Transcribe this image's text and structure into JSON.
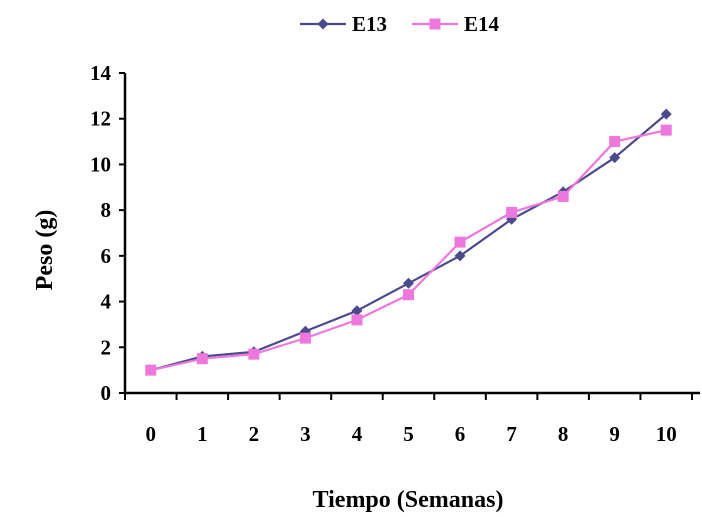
{
  "chart_data": {
    "type": "line",
    "title": "",
    "xlabel": "Tiempo (Semanas)",
    "ylabel": "Peso (g)",
    "x": [
      0,
      1,
      2,
      3,
      4,
      5,
      6,
      7,
      8,
      9,
      10
    ],
    "x_tick_labels": [
      "0",
      "1",
      "2",
      "3",
      "4",
      "5",
      "6",
      "7",
      "8",
      "9",
      "10"
    ],
    "y_tick_labels": [
      "0",
      "2",
      "4",
      "6",
      "8",
      "10",
      "12",
      "14"
    ],
    "ylim": [
      0,
      14
    ],
    "xlim": [
      -0.5,
      10.5
    ],
    "grid": false,
    "legend_position": "top",
    "series": [
      {
        "name": "E13",
        "color": "#4a4a8c",
        "marker": "diamond",
        "values": [
          1.0,
          1.6,
          1.8,
          2.7,
          3.6,
          4.8,
          6.0,
          7.6,
          8.8,
          10.3,
          12.2
        ]
      },
      {
        "name": "E14",
        "color": "#ee77dd",
        "marker": "square",
        "values": [
          1.0,
          1.5,
          1.7,
          2.4,
          3.2,
          4.3,
          6.6,
          7.9,
          8.6,
          11.0,
          11.5
        ]
      }
    ]
  }
}
